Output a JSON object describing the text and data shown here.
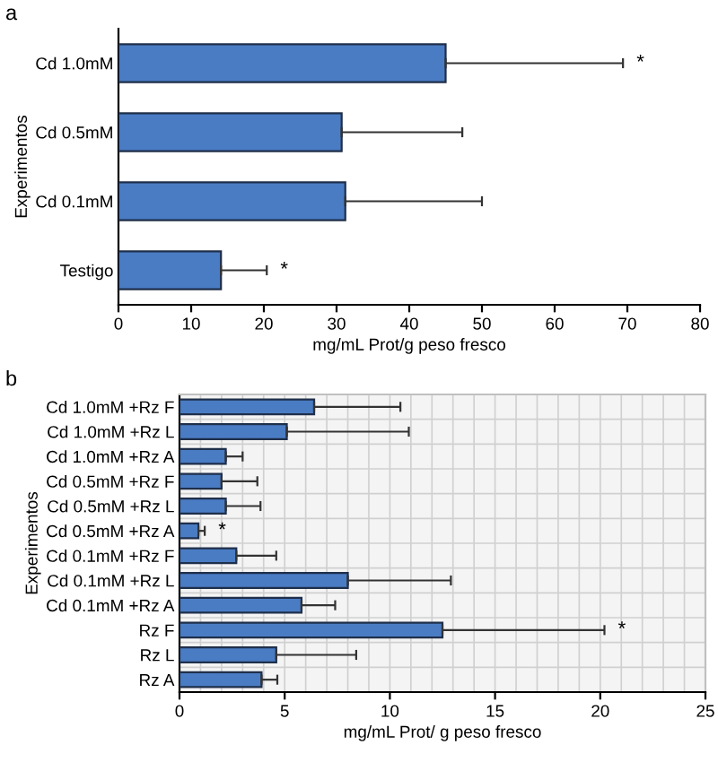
{
  "chart_data": [
    {
      "type": "bar",
      "orientation": "horizontal",
      "xlabel": "mg/mL Prot/g peso fresco",
      "ylabel": "Experimentos",
      "categories": [
        "Cd 1.0mM",
        "Cd 0.5mM",
        "Cd 0.1mM",
        "Testigo"
      ],
      "values": [
        45.0,
        30.7,
        31.2,
        14.1
      ],
      "errors": [
        [
          45.0,
          69.4
        ],
        [
          30.7,
          47.3
        ],
        [
          31.2,
          50.0
        ],
        [
          14.1,
          20.4
        ]
      ],
      "color": "#4a7cc4",
      "xlim": [
        0,
        80
      ],
      "xticks": [
        0,
        10,
        20,
        30,
        40,
        50,
        60,
        70,
        80
      ],
      "grid": false,
      "annotations": [
        "a",
        {
          "text": "*",
          "x": 69.4,
          "y": "Cd 1.0mM"
        },
        {
          "text": "*",
          "x": 20.4,
          "y": "Testigo"
        }
      ]
    },
    {
      "type": "bar",
      "orientation": "horizontal",
      "xlabel": "mg/mL Prot/ g peso fresco",
      "ylabel": "Experimentos",
      "categories": [
        "Cd 1.0mM +Rz F",
        "Cd 1.0mM +Rz L",
        "Cd 1.0mM +Rz A",
        "Cd 0.5mM +Rz F",
        "Cd 0.5mM +Rz L",
        "Cd 0.5mM +Rz A",
        "Cd 0.1mM +Rz F",
        "Cd 0.1mM +Rz L",
        "Cd 0.1mM +Rz A",
        "Rz F",
        "Rz L",
        "Rz A"
      ],
      "values": [
        6.4,
        5.1,
        2.2,
        2.0,
        2.2,
        0.9,
        2.7,
        8.0,
        5.8,
        12.5,
        4.6,
        3.9
      ],
      "errors": [
        [
          6.4,
          10.5
        ],
        [
          5.1,
          10.9
        ],
        [
          2.2,
          3.0
        ],
        [
          2.0,
          3.7
        ],
        [
          2.2,
          3.85
        ],
        [
          0.9,
          1.2
        ],
        [
          2.7,
          4.6
        ],
        [
          8.0,
          12.9
        ],
        [
          5.8,
          7.4
        ],
        [
          12.5,
          20.2
        ],
        [
          4.6,
          8.4
        ],
        [
          3.9,
          4.65
        ]
      ],
      "color": "#4a7cc4",
      "xlim": [
        0,
        25
      ],
      "xticks": [
        0,
        5,
        10,
        15,
        20,
        25
      ],
      "grid": true,
      "annotations": [
        "b",
        {
          "text": "*",
          "x": 1.2,
          "y": "Cd 0.5mM +Rz A"
        },
        {
          "text": "*",
          "x": 20.2,
          "y": "Rz F"
        }
      ]
    }
  ]
}
